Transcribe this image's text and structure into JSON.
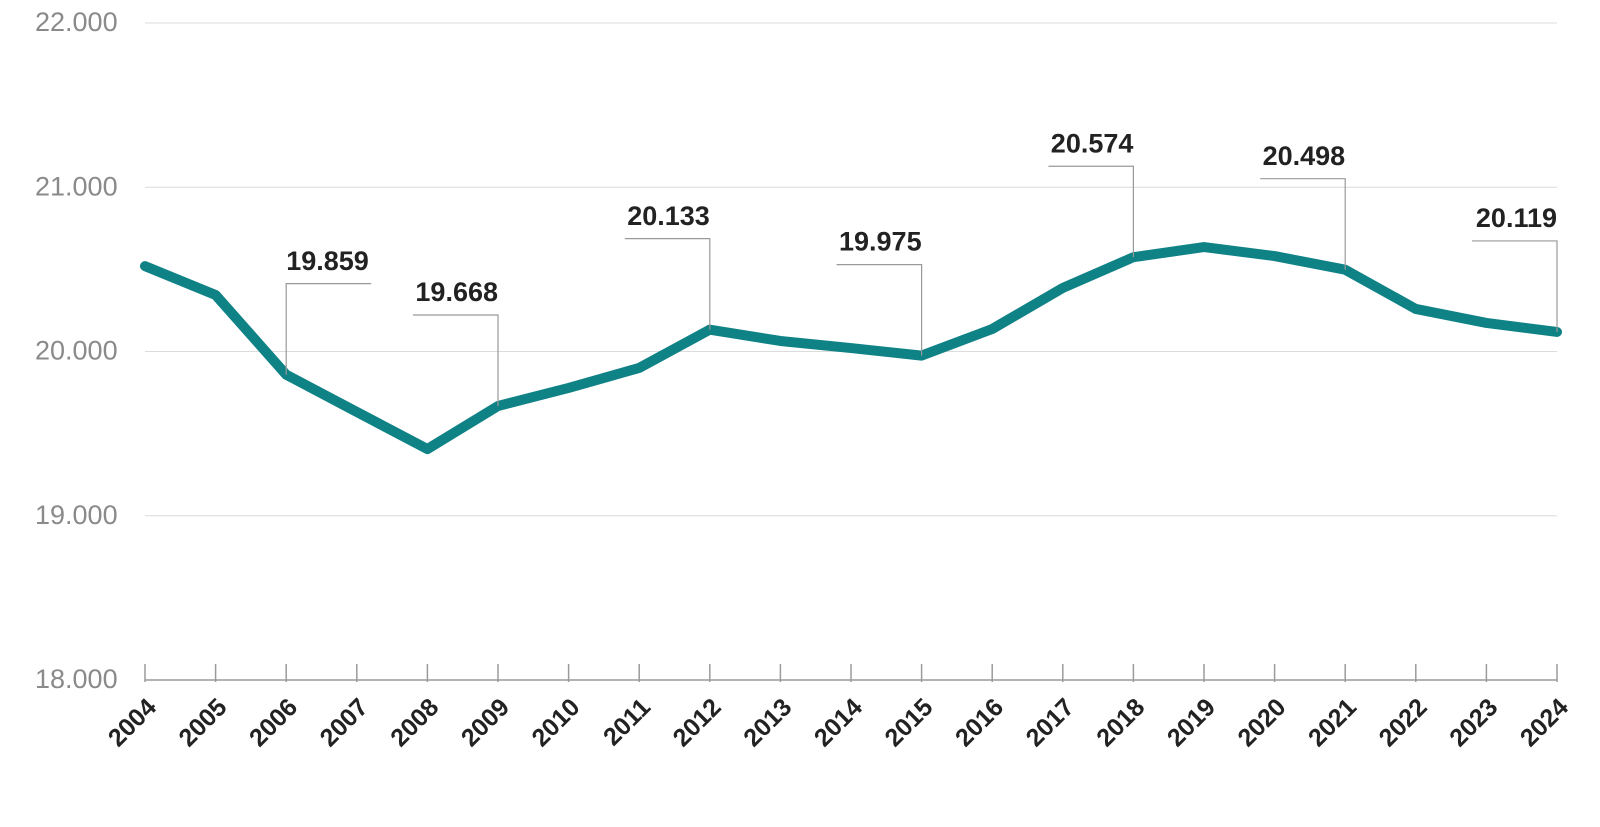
{
  "chart_data": {
    "type": "line",
    "categories": [
      "2004",
      "2005",
      "2006",
      "2007",
      "2008",
      "2009",
      "2010",
      "2011",
      "2012",
      "2013",
      "2014",
      "2015",
      "2016",
      "2017",
      "2018",
      "2019",
      "2020",
      "2021",
      "2022",
      "2023",
      "2024"
    ],
    "values": [
      20520,
      20344,
      19859,
      19632,
      19406,
      19668,
      19778,
      19900,
      20133,
      20064,
      20021,
      19975,
      20137,
      20387,
      20574,
      20636,
      20581,
      20498,
      20259,
      20174,
      20119
    ],
    "value_labels": [
      null,
      null,
      "19.859",
      null,
      null,
      "19.668",
      null,
      null,
      "20.133",
      null,
      null,
      "19.975",
      null,
      null,
      "20.574",
      null,
      null,
      "20.498",
      null,
      null,
      "20.119"
    ],
    "color": "#0f8286",
    "ylim": [
      18000,
      22000
    ],
    "yticks": [
      {
        "value": 18000,
        "label": "18.000"
      },
      {
        "value": 19000,
        "label": "19.000"
      },
      {
        "value": 20000,
        "label": "20.000"
      },
      {
        "value": 21000,
        "label": "21.000"
      },
      {
        "value": 22000,
        "label": "22.000"
      }
    ],
    "grid": true
  }
}
